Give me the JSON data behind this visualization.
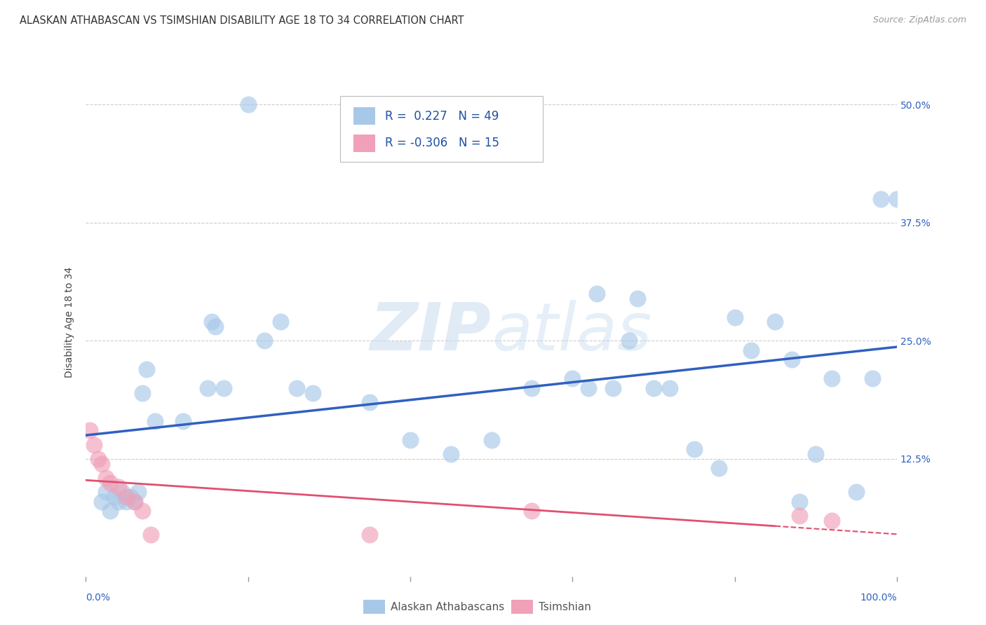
{
  "title": "ALASKAN ATHABASCAN VS TSIMSHIAN DISABILITY AGE 18 TO 34 CORRELATION CHART",
  "source": "Source: ZipAtlas.com",
  "ylabel": "Disability Age 18 to 34",
  "ytick_labels": [
    "12.5%",
    "25.0%",
    "37.5%",
    "50.0%"
  ],
  "ytick_values": [
    0.125,
    0.25,
    0.375,
    0.5
  ],
  "xlim": [
    0.0,
    1.0
  ],
  "ylim": [
    0.0,
    0.54
  ],
  "legend_label1": "Alaskan Athabascans",
  "legend_label2": "Tsimshian",
  "blue_color": "#A8C8E8",
  "pink_color": "#F0A0B8",
  "blue_line_color": "#3060C0",
  "pink_line_color": "#E05070",
  "text_color": "#2050A0",
  "background_color": "#FFFFFF",
  "grid_color": "#CCCCCC",
  "blue_x": [
    0.02,
    0.025,
    0.03,
    0.035,
    0.04,
    0.045,
    0.05,
    0.055,
    0.06,
    0.065,
    0.075,
    0.085,
    0.12,
    0.155,
    0.16,
    0.2,
    0.22,
    0.24,
    0.26,
    0.28,
    0.35,
    0.4,
    0.45,
    0.5,
    0.55,
    0.6,
    0.65,
    0.68,
    0.7,
    0.72,
    0.75,
    0.78,
    0.8,
    0.85,
    0.88,
    0.9,
    0.92,
    0.95,
    0.97,
    0.98,
    1.0,
    0.07,
    0.15,
    0.17,
    0.62,
    0.63,
    0.67,
    0.82,
    0.87
  ],
  "blue_y": [
    0.08,
    0.09,
    0.07,
    0.085,
    0.08,
    0.09,
    0.08,
    0.085,
    0.08,
    0.09,
    0.22,
    0.165,
    0.165,
    0.27,
    0.265,
    0.5,
    0.25,
    0.27,
    0.2,
    0.195,
    0.185,
    0.145,
    0.13,
    0.145,
    0.2,
    0.21,
    0.2,
    0.295,
    0.2,
    0.2,
    0.135,
    0.115,
    0.275,
    0.27,
    0.08,
    0.13,
    0.21,
    0.09,
    0.21,
    0.4,
    0.4,
    0.195,
    0.2,
    0.2,
    0.2,
    0.3,
    0.25,
    0.24,
    0.23
  ],
  "pink_x": [
    0.005,
    0.01,
    0.015,
    0.02,
    0.025,
    0.03,
    0.04,
    0.05,
    0.06,
    0.07,
    0.08,
    0.35,
    0.55,
    0.88,
    0.92
  ],
  "pink_y": [
    0.155,
    0.14,
    0.125,
    0.12,
    0.105,
    0.1,
    0.095,
    0.085,
    0.08,
    0.07,
    0.045,
    0.045,
    0.07,
    0.065,
    0.06
  ],
  "title_fontsize": 10.5,
  "source_fontsize": 9,
  "axis_label_fontsize": 10,
  "tick_fontsize": 10,
  "legend_fontsize": 12,
  "watermark": "ZIPatlas"
}
